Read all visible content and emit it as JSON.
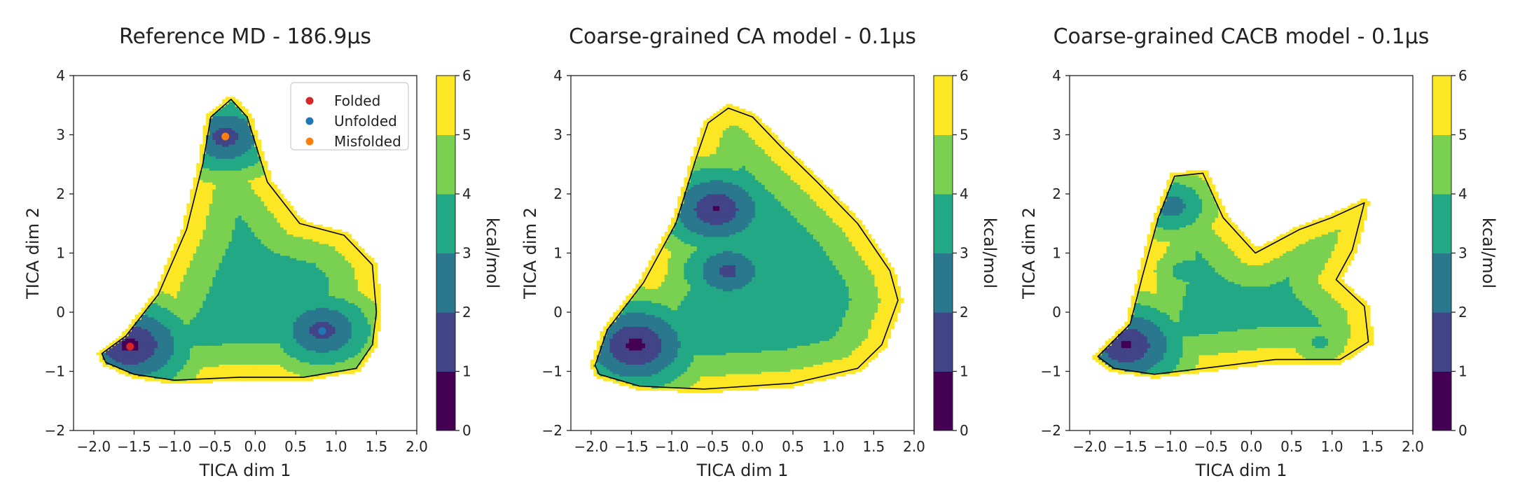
{
  "chart_data": [
    {
      "type": "contour",
      "title": "Reference MD - 186.9µs",
      "xlabel": "TICA dim 1",
      "ylabel": "TICA dim 2",
      "xlim": [
        -2.25,
        2.0
      ],
      "ylim": [
        -2,
        4
      ],
      "xticks": [
        "−2.0",
        "−1.5",
        "−1.0",
        "−0.5",
        "0.0",
        "0.5",
        "1.0",
        "1.5",
        "2.0"
      ],
      "yticks": [
        "−2",
        "−1",
        "0",
        "1",
        "2",
        "3",
        "4"
      ],
      "colorbar_label": "kcal/mol",
      "colorbar_ticks": [
        "0",
        "1",
        "2",
        "3",
        "4",
        "5",
        "6"
      ],
      "levels_kcal_mol": [
        0,
        1,
        2,
        3,
        4,
        5,
        6
      ],
      "legend": [
        {
          "label": "Folded",
          "color": "#d62728",
          "x": -1.55,
          "y": -0.58
        },
        {
          "label": "Unfolded",
          "color": "#1f77b4",
          "x": 0.83,
          "y": -0.32
        },
        {
          "label": "Misfolded",
          "color": "#ff7f0e",
          "x": -0.37,
          "y": 2.97
        }
      ],
      "basins": [
        {
          "x": -1.55,
          "y": -0.55,
          "min_kcal_mol": 0.5
        },
        {
          "x": 0.83,
          "y": -0.3,
          "min_kcal_mol": 1.3
        },
        {
          "x": -0.37,
          "y": 2.97,
          "min_kcal_mol": 1.3
        }
      ],
      "support": [
        [
          -1.9,
          -0.7
        ],
        [
          -1.6,
          -0.4
        ],
        [
          -1.2,
          0.3
        ],
        [
          -0.85,
          1.4
        ],
        [
          -0.65,
          2.5
        ],
        [
          -0.55,
          3.3
        ],
        [
          -0.3,
          3.6
        ],
        [
          -0.1,
          3.3
        ],
        [
          0.15,
          2.2
        ],
        [
          0.55,
          1.5
        ],
        [
          1.1,
          1.3
        ],
        [
          1.45,
          0.8
        ],
        [
          1.5,
          0.0
        ],
        [
          1.45,
          -0.55
        ],
        [
          1.25,
          -0.95
        ],
        [
          0.6,
          -1.1
        ],
        [
          -0.2,
          -1.1
        ],
        [
          -1.0,
          -1.15
        ],
        [
          -1.5,
          -1.05
        ],
        [
          -1.85,
          -0.85
        ]
      ]
    },
    {
      "type": "contour",
      "title": "Coarse-grained CA model - 0.1µs",
      "xlabel": "TICA dim 1",
      "ylabel": "TICA dim 2",
      "xlim": [
        -2.25,
        2.0
      ],
      "ylim": [
        -2,
        4
      ],
      "xticks": [
        "−2.0",
        "−1.5",
        "−1.0",
        "−0.5",
        "0.0",
        "0.5",
        "1.0",
        "1.5",
        "2.0"
      ],
      "yticks": [
        "−2",
        "−1",
        "0",
        "1",
        "2",
        "3",
        "4"
      ],
      "colorbar_label": "kcal/mol",
      "colorbar_ticks": [
        "0",
        "1",
        "2",
        "3",
        "4",
        "5",
        "6"
      ],
      "levels_kcal_mol": [
        0,
        1,
        2,
        3,
        4,
        5,
        6
      ],
      "basins": [
        {
          "x": -1.45,
          "y": -0.55,
          "min_kcal_mol": 0.5
        },
        {
          "x": -0.3,
          "y": 0.7,
          "min_kcal_mol": 1.5
        },
        {
          "x": -0.45,
          "y": 1.75,
          "min_kcal_mol": 0.8
        }
      ],
      "support": [
        [
          -1.95,
          -0.9
        ],
        [
          -1.8,
          -0.3
        ],
        [
          -1.35,
          0.5
        ],
        [
          -0.95,
          1.5
        ],
        [
          -0.7,
          2.6
        ],
        [
          -0.55,
          3.2
        ],
        [
          -0.3,
          3.45
        ],
        [
          0.0,
          3.3
        ],
        [
          0.35,
          2.8
        ],
        [
          0.8,
          2.2
        ],
        [
          1.3,
          1.5
        ],
        [
          1.7,
          0.7
        ],
        [
          1.8,
          0.2
        ],
        [
          1.6,
          -0.55
        ],
        [
          1.3,
          -0.95
        ],
        [
          0.5,
          -1.2
        ],
        [
          -0.6,
          -1.3
        ],
        [
          -1.4,
          -1.25
        ],
        [
          -1.9,
          -1.05
        ]
      ]
    },
    {
      "type": "contour",
      "title": "Coarse-grained CACB model - 0.1µs",
      "xlabel": "TICA dim 1",
      "ylabel": "TICA dim 2",
      "xlim": [
        -2.25,
        2.0
      ],
      "ylim": [
        -2,
        4
      ],
      "xticks": [
        "−2.0",
        "−1.5",
        "−1.0",
        "−0.5",
        "0.0",
        "0.5",
        "1.0",
        "1.5",
        "2.0"
      ],
      "yticks": [
        "−2",
        "−1",
        "0",
        "1",
        "2",
        "3",
        "4"
      ],
      "colorbar_label": "kcal/mol",
      "colorbar_ticks": [
        "0",
        "1",
        "2",
        "3",
        "4",
        "5",
        "6"
      ],
      "levels_kcal_mol": [
        0,
        1,
        2,
        3,
        4,
        5,
        6
      ],
      "basins": [
        {
          "x": -1.55,
          "y": -0.55,
          "min_kcal_mol": 0.7
        },
        {
          "x": -1.0,
          "y": 1.8,
          "min_kcal_mol": 2.2
        },
        {
          "x": -0.8,
          "y": 0.7,
          "min_kcal_mol": 3.2
        },
        {
          "x": -0.2,
          "y": -0.1,
          "min_kcal_mol": 3.4
        },
        {
          "x": 0.85,
          "y": -0.5,
          "min_kcal_mol": 3.5
        }
      ],
      "support": [
        [
          -1.9,
          -0.75
        ],
        [
          -1.5,
          -0.2
        ],
        [
          -1.35,
          0.6
        ],
        [
          -1.15,
          1.6
        ],
        [
          -0.95,
          2.3
        ],
        [
          -0.6,
          2.35
        ],
        [
          -0.35,
          1.6
        ],
        [
          0.05,
          1.0
        ],
        [
          0.6,
          1.4
        ],
        [
          1.0,
          1.6
        ],
        [
          1.4,
          1.85
        ],
        [
          1.25,
          1.05
        ],
        [
          1.05,
          0.55
        ],
        [
          1.4,
          0.1
        ],
        [
          1.45,
          -0.5
        ],
        [
          1.1,
          -0.8
        ],
        [
          0.3,
          -0.8
        ],
        [
          -0.6,
          -0.95
        ],
        [
          -1.2,
          -1.05
        ],
        [
          -1.7,
          -0.95
        ]
      ]
    }
  ]
}
